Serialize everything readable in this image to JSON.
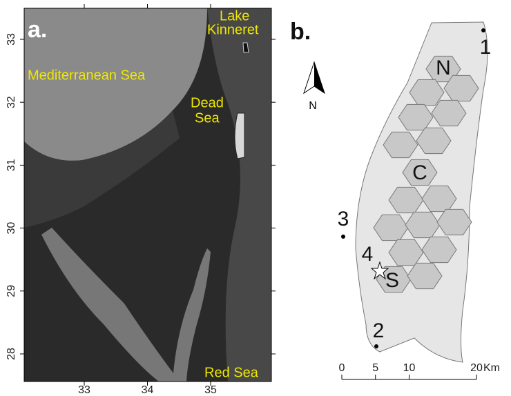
{
  "panel_a": {
    "label": "a.",
    "places": {
      "lake_kinneret": [
        "Lake",
        "Kinneret"
      ],
      "mediterranean": "Mediterranean Sea",
      "dead_sea": [
        "Dead",
        "Sea"
      ],
      "red_sea": "Red Sea"
    },
    "lat_ticks": [
      33,
      32,
      31,
      30,
      29,
      28
    ],
    "lon_ticks": [
      33,
      34,
      35
    ]
  },
  "panel_b": {
    "label": "b.",
    "north_label": "N",
    "zones": [
      "N",
      "C",
      "S"
    ],
    "stations": [
      "1",
      "2",
      "3",
      "4"
    ],
    "scale_ticks": [
      0,
      5,
      10,
      20
    ],
    "scale_unit": "Km"
  }
}
